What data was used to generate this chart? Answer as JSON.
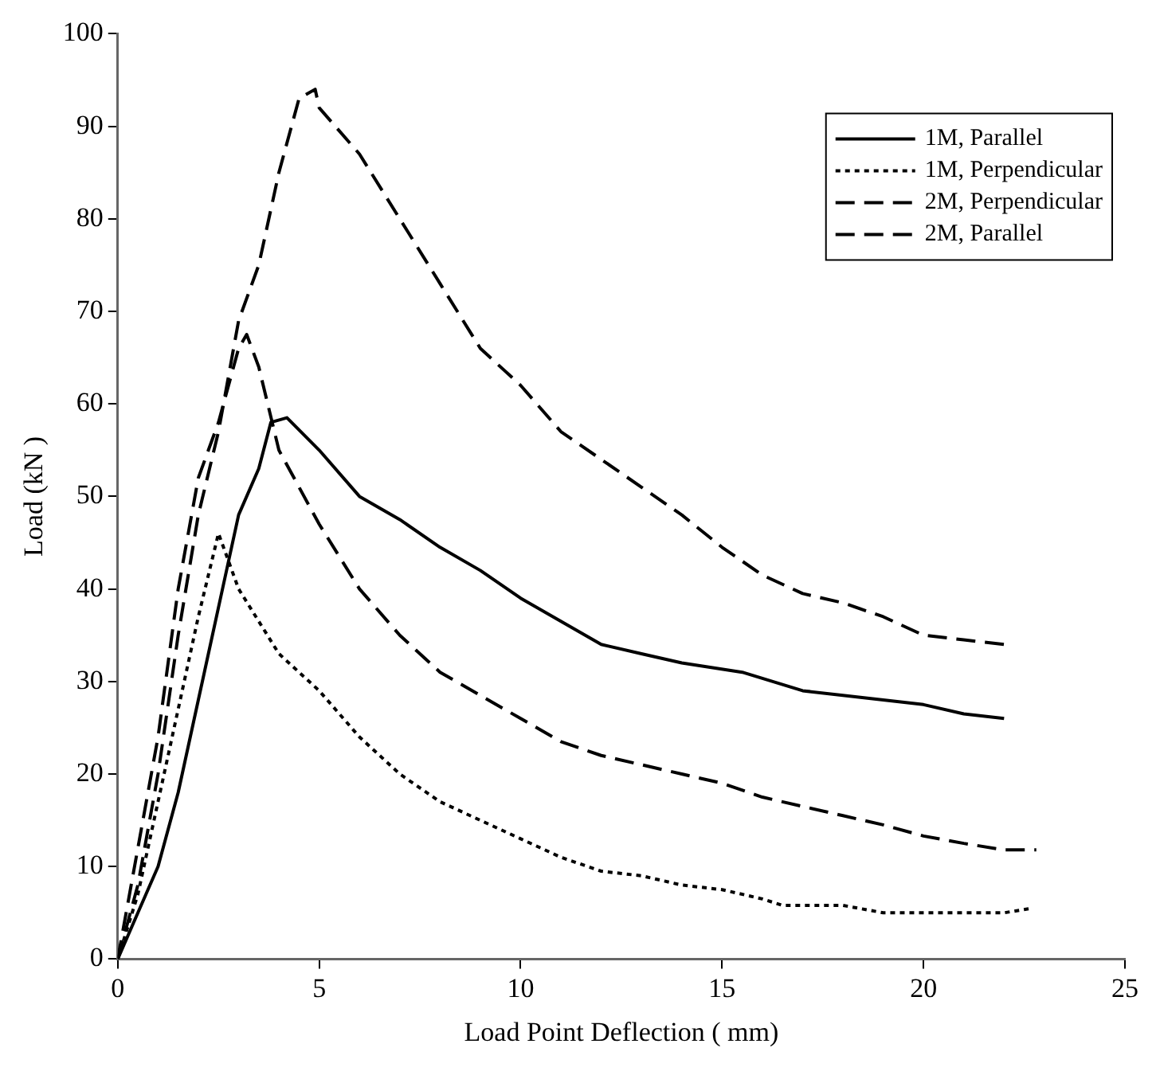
{
  "chart_data": {
    "type": "line",
    "xlabel": "Load Point Deflection ( mm)",
    "ylabel": "Load (kN )",
    "xlim": [
      0,
      25
    ],
    "xticks": [
      0,
      5,
      10,
      15,
      20,
      25
    ],
    "ylim": [
      0,
      100
    ],
    "yticks": [
      0,
      10,
      20,
      30,
      40,
      50,
      60,
      70,
      80,
      90,
      100
    ],
    "grid": false,
    "legend": "top right",
    "marker": "none",
    "series": [
      {
        "name": "1M, Parallel",
        "color": "#000000",
        "line_style": "solid",
        "x": [
          0,
          0.5,
          1,
          1.5,
          2,
          2.5,
          3,
          3.5,
          3.8,
          4.2,
          5,
          6,
          7,
          8,
          9,
          10,
          11,
          12,
          13,
          14,
          15.5,
          17,
          18,
          20,
          21,
          22
        ],
        "values": [
          0,
          5,
          10,
          18,
          28,
          38,
          48,
          53,
          58,
          58.5,
          55,
          50,
          47.5,
          44.5,
          42,
          39,
          36.5,
          34,
          33,
          32,
          31,
          29,
          28.5,
          27.5,
          26.5,
          26
        ]
      },
      {
        "name": "1M, Perpendicular",
        "color": "#000000",
        "line_style": "dotted",
        "x": [
          0,
          0.5,
          1,
          1.5,
          2,
          2.5,
          3,
          4,
          5,
          6,
          7,
          8,
          9,
          10,
          11,
          12,
          13,
          14,
          15,
          16,
          16.5,
          18,
          19,
          20,
          22,
          22.7
        ],
        "values": [
          0,
          7,
          17,
          27,
          37,
          46,
          40,
          33,
          29,
          24,
          20,
          17,
          15,
          13,
          11,
          9.5,
          9,
          8,
          7.5,
          6.5,
          5.8,
          5.8,
          5,
          5,
          5,
          5.5
        ]
      },
      {
        "name": "2M, Perpendicular",
        "color": "#000000",
        "line_style": "dashed",
        "x": [
          0,
          0.5,
          1,
          1.5,
          2,
          2.5,
          3,
          3.2,
          3.5,
          4,
          5,
          6,
          7,
          8,
          9,
          10,
          11,
          12,
          13,
          14,
          15,
          16,
          17,
          18,
          19,
          20,
          21,
          22,
          22.8
        ],
        "values": [
          0,
          12,
          24,
          40,
          52,
          58,
          66,
          67.5,
          64,
          55,
          47,
          40,
          35,
          31,
          28.5,
          26,
          23.5,
          22,
          21,
          20,
          19,
          17.5,
          16.5,
          15.5,
          14.5,
          13.3,
          12.5,
          11.8,
          11.8
        ]
      },
      {
        "name": "2M, Parallel",
        "color": "#000000",
        "line_style": "dashed",
        "x": [
          0,
          0.5,
          1,
          1.5,
          2,
          2.5,
          3,
          3.5,
          4,
          4.5,
          4.9,
          5,
          6,
          7,
          8,
          9,
          10,
          11,
          12,
          13,
          14,
          15,
          16,
          17,
          18,
          19,
          20,
          21,
          22
        ],
        "values": [
          0,
          8,
          20,
          35,
          48,
          57,
          69,
          75,
          85,
          93,
          94,
          92,
          87,
          80,
          73,
          66,
          62,
          57,
          54,
          51,
          48,
          44.5,
          41.5,
          39.5,
          38.5,
          37,
          35,
          34.5,
          34
        ]
      }
    ]
  }
}
